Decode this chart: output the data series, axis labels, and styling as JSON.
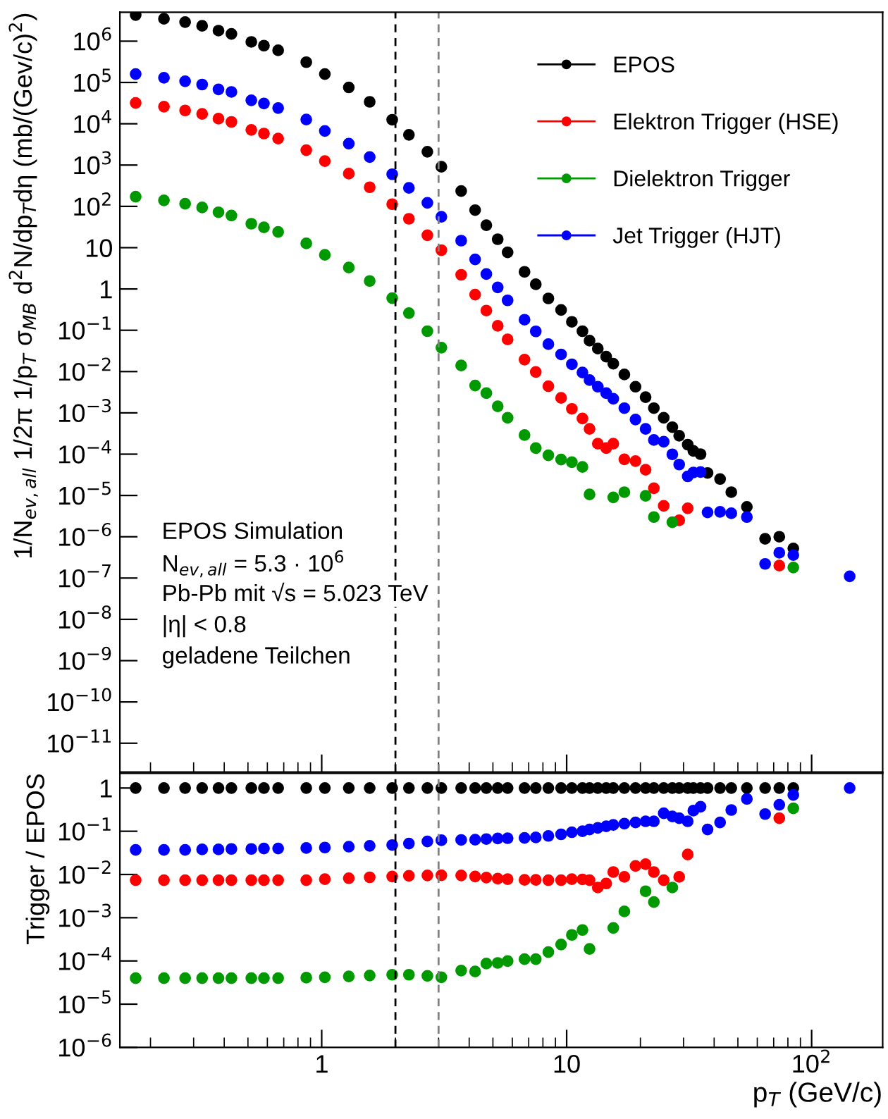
{
  "chart_data": [
    {
      "type": "scatter",
      "marker": "circle",
      "log": "xy",
      "legend": "top right",
      "grid": false,
      "tick_labels": "y",
      "ylabel": "1/N$_{ev,all}$ 1/2π 1/p$_{T}$ σ$_{MB}$ d$^{2}$N/dp$_{T}$dη (mb/(Gev/c)$^{2}$)",
      "xlim": [
        0.15,
        195
      ],
      "xticks": [
        {
          "value": 1,
          "label": null
        },
        {
          "value": 10,
          "label": null
        },
        {
          "value": 100,
          "label": null
        }
      ],
      "ylim": [
        2e-12,
        5000000
      ],
      "yticks": [
        {
          "value": 1e-11,
          "label": "10$^{−11}$"
        },
        {
          "value": 1e-10,
          "label": "10$^{−10}$"
        },
        {
          "value": 1e-09,
          "label": "10$^{−9}$"
        },
        {
          "value": 1e-08,
          "label": "10$^{−8}$"
        },
        {
          "value": 1e-07,
          "label": "10$^{−7}$"
        },
        {
          "value": 1e-06,
          "label": "10$^{−6}$"
        },
        {
          "value": 1e-05,
          "label": "10$^{−5}$"
        },
        {
          "value": 0.0001,
          "label": "10$^{−4}$"
        },
        {
          "value": 0.001,
          "label": "10$^{−3}$"
        },
        {
          "value": 0.01,
          "label": "10$^{−2}$"
        },
        {
          "value": 0.1,
          "label": "10$^{−1}$"
        },
        1,
        10,
        {
          "value": 100,
          "label": "10$^{2}$"
        },
        {
          "value": 1000,
          "label": "10$^{3}$"
        },
        {
          "value": 10000,
          "label": "10$^{4}$"
        },
        {
          "value": 100000,
          "label": "10$^{5}$"
        },
        {
          "value": 1000000,
          "label": "10$^{6}$"
        }
      ],
      "x": [
        0.174,
        0.227,
        0.277,
        0.325,
        0.379,
        0.428,
        0.516,
        0.581,
        0.664,
        0.865,
        1.03,
        1.29,
        1.57,
        1.94,
        2.27,
        2.7,
        3.08,
        3.71,
        4.23,
        4.7,
        5.23,
        5.74,
        6.73,
        7.48,
        8.42,
        9.49,
        10.5,
        11.6,
        12.4,
        13.4,
        14.5,
        15.5,
        17.2,
        19.1,
        21.0,
        22.7,
        24.9,
        27.0,
        28.8,
        31.2,
        32.9,
        35.2,
        37.6,
        42.3,
        47.0,
        54.4,
        64.6,
        73.8,
        84.2,
        143
      ],
      "ref_lines": [
        {
          "axis": "x",
          "value": 2,
          "color": "#000000",
          "line_style": "dashed"
        },
        {
          "axis": "x",
          "value": 3,
          "color": "#808080",
          "line_style": "dashed"
        }
      ],
      "annotations": [
        "EPOS Simulation",
        "N$_{ev,all}$ = 5.3 · 10$^{6}$",
        "Pb-Pb mit √s = 5.023 TeV",
        "|η| < 0.8",
        "geladene Teilchen"
      ],
      "series": [
        {
          "name": "EPOS",
          "color": "#000000",
          "values": [
            4300000,
            3500000,
            2900000,
            2350000,
            1800000,
            1500000,
            960000,
            780000,
            600000,
            310000,
            160000,
            76000,
            34000,
            12500,
            5400,
            2100,
            910,
            235,
            81,
            35,
            16,
            7.7,
            2.6,
            1.3,
            0.59,
            0.31,
            0.16,
            0.095,
            0.056,
            0.036,
            0.023,
            0.0155,
            0.0085,
            0.0043,
            0.0024,
            0.0013,
            0.00076,
            0.00045,
            0.00028,
            0.00017,
            0.00012,
            0.0001,
            3.5e-05,
            2.5e-05,
            1.2e-05,
            5.3e-06,
            8.9e-07,
            1e-06,
            5.2e-07,
            null
          ]
        },
        {
          "name": "Elektron Trigger (HSE)",
          "color": "#ff0000",
          "values": [
            32000,
            26000,
            21000,
            17400,
            13300,
            11100,
            7100,
            5800,
            4400,
            2300,
            1250,
            620,
            290,
            113,
            50,
            20,
            8.7,
            2.2,
            0.73,
            0.3,
            0.128,
            0.06,
            0.0195,
            0.0098,
            0.0044,
            0.0023,
            0.00125,
            0.00073,
            0.00041,
            0.00018,
            0.00014,
            0.00018,
            7.5e-05,
            6.8e-05,
            4.2e-05,
            1.5e-05,
            5.6e-06,
            null,
            2.5e-06,
            4.9e-06,
            null,
            null,
            null,
            null,
            null,
            null,
            null,
            2e-07,
            null,
            null
          ]
        },
        {
          "name": "Dielektron Trigger",
          "color": "#009900",
          "values": [
            172,
            140,
            116,
            94,
            72,
            60,
            38,
            31,
            24,
            12.7,
            6.7,
            3.3,
            1.56,
            0.6,
            0.26,
            0.095,
            0.038,
            0.0141,
            0.0046,
            0.003,
            0.00144,
            0.00076,
            0.00029,
            0.00014,
            9.4e-05,
            7.4e-05,
            6.4e-05,
            4.9e-05,
            1.06e-05,
            null,
            null,
            9e-06,
            1.2e-05,
            null,
            9.8e-06,
            3e-06,
            null,
            2.25e-06,
            null,
            null,
            null,
            null,
            null,
            null,
            null,
            null,
            null,
            null,
            1.8e-07,
            null
          ]
        },
        {
          "name": "Jet Trigger (HJT)",
          "color": "#0000ff",
          "values": [
            160000,
            130000,
            107000,
            89000,
            68000,
            59000,
            37000,
            31000,
            24000,
            12700,
            6700,
            3300,
            1560,
            600,
            280,
            122,
            56,
            14.8,
            5.2,
            2.3,
            1.09,
            0.53,
            0.18,
            0.094,
            0.046,
            0.026,
            0.015,
            0.0095,
            0.0062,
            0.0043,
            0.003,
            0.0022,
            0.0013,
            0.00069,
            0.00041,
            0.00022,
            0.0002,
            9.9e-05,
            5.6e-05,
            2.9e-05,
            3.6e-05,
            3.7e-05,
            3.9e-06,
            4e-06,
            3.7e-06,
            3e-06,
            2.2e-07,
            4.1e-07,
            3.6e-07,
            1.1e-07
          ]
        }
      ]
    },
    {
      "type": "scatter",
      "marker": "circle",
      "log": "xy",
      "grid": false,
      "ylabel": "Trigger / EPOS",
      "xlabel": "p$_{T}$ (GeV/c)",
      "xlim": [
        0.15,
        195
      ],
      "xticks": [
        1,
        10,
        {
          "value": 100,
          "label": "10$^{2}$"
        }
      ],
      "ylim": [
        1e-06,
        2.2
      ],
      "yticks": [
        {
          "value": 1e-06,
          "label": "10$^{−6}$"
        },
        {
          "value": 1e-05,
          "label": "10$^{−5}$"
        },
        {
          "value": 0.0001,
          "label": "10$^{−4}$"
        },
        {
          "value": 0.001,
          "label": "10$^{−3}$"
        },
        {
          "value": 0.01,
          "label": "10$^{−2}$"
        },
        {
          "value": 0.1,
          "label": "10$^{−1}$"
        },
        1
      ],
      "x": [
        0.174,
        0.227,
        0.277,
        0.325,
        0.379,
        0.428,
        0.516,
        0.581,
        0.664,
        0.865,
        1.03,
        1.29,
        1.57,
        1.94,
        2.27,
        2.7,
        3.08,
        3.71,
        4.23,
        4.7,
        5.23,
        5.74,
        6.73,
        7.48,
        8.42,
        9.49,
        10.5,
        11.6,
        12.4,
        13.4,
        14.5,
        15.5,
        17.2,
        19.1,
        21.0,
        22.7,
        24.9,
        27.0,
        28.8,
        31.2,
        32.9,
        35.2,
        37.6,
        42.3,
        47.0,
        54.4,
        64.6,
        73.8,
        84.2,
        143
      ],
      "ref_lines": [
        {
          "axis": "x",
          "value": 2,
          "color": "#000000",
          "line_style": "dashed"
        },
        {
          "axis": "x",
          "value": 3,
          "color": "#808080",
          "line_style": "dashed"
        }
      ],
      "series": [
        {
          "color": "#000000",
          "values": [
            1,
            1,
            1,
            1,
            1,
            1,
            1,
            1,
            1,
            1,
            1,
            1,
            1,
            1,
            1,
            1,
            1,
            1,
            1,
            1,
            1,
            1,
            1,
            1,
            1,
            1,
            1,
            1,
            1,
            1,
            1,
            1,
            1,
            1,
            1,
            1,
            1,
            1,
            1,
            1,
            1,
            1,
            1,
            1,
            1,
            1,
            1,
            1,
            1,
            null
          ]
        },
        {
          "color": "#ff0000",
          "values": [
            0.0074,
            0.0074,
            0.0074,
            0.0074,
            0.0074,
            0.0074,
            0.0074,
            0.0074,
            0.0074,
            0.0074,
            0.0078,
            0.0082,
            0.0086,
            0.009,
            0.0093,
            0.0095,
            0.0096,
            0.0095,
            0.009,
            0.0085,
            0.008,
            0.0078,
            0.0075,
            0.0075,
            0.0074,
            0.0074,
            0.0078,
            0.0077,
            0.0074,
            0.005,
            0.0062,
            0.0114,
            0.0088,
            0.0158,
            0.0173,
            0.0114,
            0.0074,
            null,
            0.0088,
            0.029,
            null,
            null,
            null,
            null,
            null,
            null,
            null,
            0.2,
            null,
            null
          ]
        },
        {
          "color": "#009900",
          "values": [
            4e-05,
            4e-05,
            4e-05,
            4e-05,
            4e-05,
            4e-05,
            4e-05,
            4e-05,
            4e-05,
            4.1e-05,
            4.2e-05,
            4.4e-05,
            4.6e-05,
            4.8e-05,
            4.8e-05,
            4.5e-05,
            4.2e-05,
            6e-05,
            5.7e-05,
            8.7e-05,
            9e-05,
            9.9e-05,
            0.00011,
            0.00011,
            0.00016,
            0.00024,
            0.0004,
            0.00052,
            0.00019,
            null,
            null,
            0.00058,
            0.0014,
            null,
            0.0041,
            0.0023,
            null,
            0.005,
            null,
            null,
            null,
            null,
            null,
            null,
            null,
            null,
            null,
            null,
            0.34,
            null
          ]
        },
        {
          "color": "#0000ff",
          "values": [
            0.037,
            0.037,
            0.037,
            0.038,
            0.038,
            0.039,
            0.039,
            0.04,
            0.04,
            0.041,
            0.042,
            0.044,
            0.046,
            0.048,
            0.052,
            0.058,
            0.062,
            0.063,
            0.064,
            0.066,
            0.068,
            0.069,
            0.07,
            0.072,
            0.078,
            0.085,
            0.095,
            0.1,
            0.11,
            0.12,
            0.13,
            0.14,
            0.15,
            0.16,
            0.17,
            0.17,
            0.26,
            0.22,
            0.2,
            0.17,
            0.3,
            0.37,
            0.11,
            0.16,
            0.31,
            0.56,
            0.25,
            0.41,
            0.69,
            1
          ]
        }
      ]
    }
  ]
}
